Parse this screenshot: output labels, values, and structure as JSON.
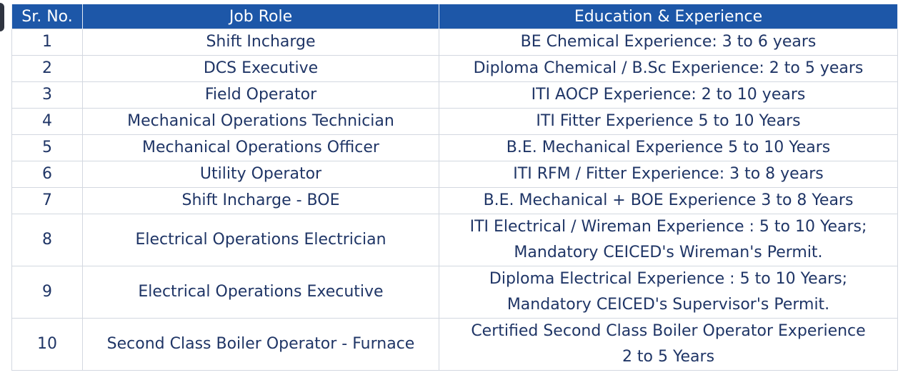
{
  "table": {
    "headers": [
      "Sr. No.",
      "Job Role",
      "Education & Experience"
    ],
    "rows": [
      {
        "sr": "1",
        "role": "Shift Incharge",
        "edu": [
          "BE Chemical Experience: 3 to 6 years"
        ]
      },
      {
        "sr": "2",
        "role": "DCS Executive",
        "edu": [
          "Diploma Chemical / B.Sc Experience: 2 to 5 years"
        ]
      },
      {
        "sr": "3",
        "role": "Field Operator",
        "edu": [
          "ITI AOCP Experience: 2 to 10 years"
        ]
      },
      {
        "sr": "4",
        "role": "Mechanical Operations Technician",
        "edu": [
          "ITI Fitter Experience 5 to 10 Years"
        ]
      },
      {
        "sr": "5",
        "role": "Mechanical Operations Officer",
        "edu": [
          "B.E. Mechanical Experience 5 to 10 Years"
        ]
      },
      {
        "sr": "6",
        "role": "Utility Operator",
        "edu": [
          "ITI RFM / Fitter Experience: 3 to 8 years"
        ]
      },
      {
        "sr": "7",
        "role": "Shift Incharge -  BOE",
        "edu": [
          "B.E. Mechanical + BOE Experience 3 to 8 Years"
        ]
      },
      {
        "sr": "8",
        "role": "Electrical Operations Electrician",
        "edu": [
          "ITI Electrical / Wireman Experience : 5 to 10 Years;",
          "Mandatory CEICED's Wireman's Permit."
        ]
      },
      {
        "sr": "9",
        "role": "Electrical Operations Executive",
        "edu": [
          "Diploma Electrical Experience : 5 to 10 Years;",
          "Mandatory CEICED's Supervisor's Permit."
        ]
      },
      {
        "sr": "10",
        "role": "Second Class Boiler Operator - Furnace",
        "edu": [
          "Certified Second Class Boiler Operator Experience",
          "2 to 5 Years"
        ]
      }
    ]
  }
}
